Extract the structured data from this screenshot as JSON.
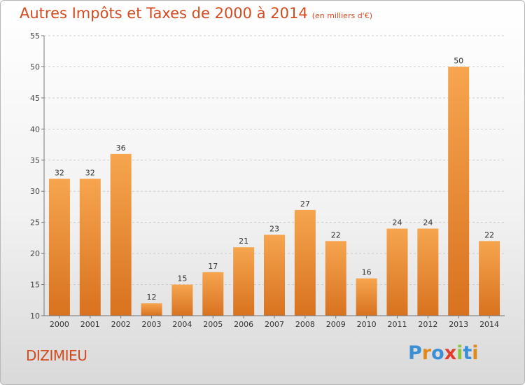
{
  "chart_data": {
    "type": "bar",
    "title": "Autres Impôts et Taxes de 2000 à 2014",
    "unit": "(en milliers d'€)",
    "categories": [
      "2000",
      "2001",
      "2002",
      "2003",
      "2004",
      "2005",
      "2006",
      "2007",
      "2008",
      "2009",
      "2010",
      "2011",
      "2012",
      "2013",
      "2014"
    ],
    "values": [
      32,
      32,
      36,
      12,
      15,
      17,
      21,
      23,
      27,
      22,
      16,
      24,
      24,
      50,
      22
    ],
    "ylim": [
      10,
      55
    ],
    "yticks": [
      10,
      15,
      20,
      25,
      30,
      35,
      40,
      45,
      50,
      55
    ],
    "grid": true,
    "bar_color_top": "#f6a54f",
    "bar_color_bottom": "#d8721f"
  },
  "footer": {
    "town": "DIZIMIEU",
    "logo": "Proxiti",
    "logo_colors": [
      "#3b8fd6",
      "#e08a1a",
      "#3b8fd6",
      "#e23c2a",
      "#8cc43a",
      "#3b8fd6",
      "#e08a1a"
    ]
  },
  "colors": {
    "title": "#d24a1e",
    "axis": "#777777",
    "grid": "#cccccc"
  }
}
